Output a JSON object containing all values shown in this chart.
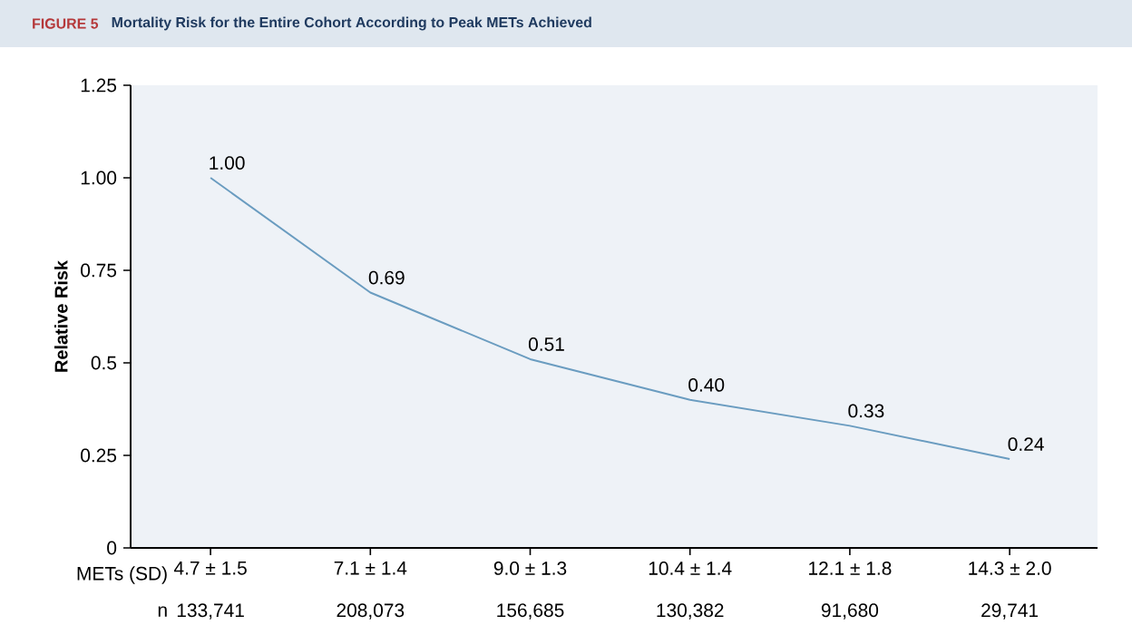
{
  "chart_data": {
    "type": "line",
    "title": "FIGURE 5",
    "subtitle": "Mortality Risk for the Entire Cohort According to Peak METs Achieved",
    "ylabel": "Relative Risk",
    "categories": [
      "4.7 ± 1.5",
      "7.1 ± 1.4",
      "9.0 ± 1.3",
      "10.4 ± 1.4",
      "12.1 ± 1.8",
      "14.3 ± 2.0"
    ],
    "values": [
      1.0,
      0.69,
      0.51,
      0.4,
      0.33,
      0.24
    ],
    "value_labels": [
      "1.00",
      "0.69",
      "0.51",
      "0.40",
      "0.33",
      "0.24"
    ],
    "color": "#6a9cc0",
    "ylim": [
      0,
      1.25
    ],
    "yticks": [
      0,
      0.25,
      0.5,
      0.75,
      {
        "value": 1,
        "label": "1.00"
      },
      {
        "value": 1.25,
        "label": "1.25"
      }
    ],
    "marker": "none",
    "line_style": "solid",
    "annotations": [
      "METs (SD)",
      "n",
      "133,741",
      "208,073",
      "156,685",
      "130,382",
      "91,680",
      "29,741"
    ]
  }
}
